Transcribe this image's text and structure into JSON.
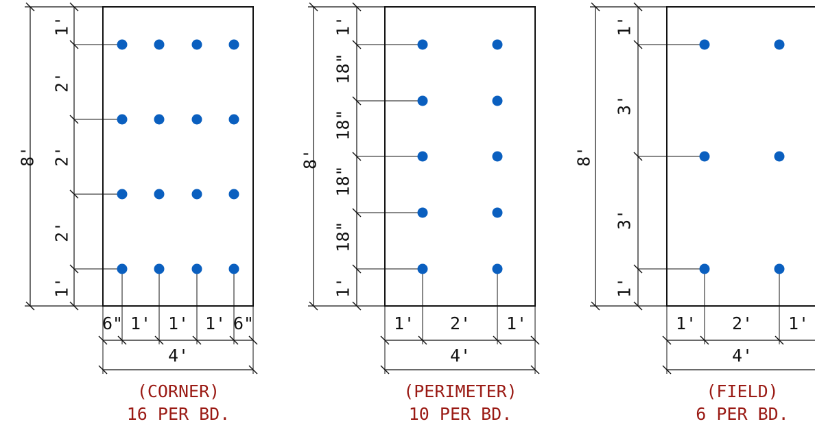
{
  "colors": {
    "fastener": "#0a5fbf",
    "caption": "#9a1a14",
    "line": "#111111"
  },
  "panels": [
    {
      "name": "corner",
      "caption": "(CORNER)",
      "count": "16 PER BD.",
      "overall_height": "8'",
      "overall_width": "4'",
      "left_dims": [
        "1'",
        "2'",
        "2'",
        "2'",
        "1'"
      ],
      "bottom_dims": [
        "6\"",
        "1'",
        "1'",
        "1'",
        "6\""
      ]
    },
    {
      "name": "perimeter",
      "caption": "(PERIMETER)",
      "count": "10 PER BD.",
      "overall_height": "8'",
      "overall_width": "4'",
      "left_dims": [
        "1'",
        "18\"",
        "18\"",
        "18\"",
        "18\"",
        "1'"
      ],
      "bottom_dims": [
        "1'",
        "2'",
        "1'"
      ]
    },
    {
      "name": "field",
      "caption": "(FIELD)",
      "count": "6 PER BD.",
      "overall_height": "8'",
      "overall_width": "4'",
      "left_dims": [
        "1'",
        "3'",
        "3'",
        "1'"
      ],
      "bottom_dims": [
        "1'",
        "2'",
        "1'"
      ]
    }
  ]
}
